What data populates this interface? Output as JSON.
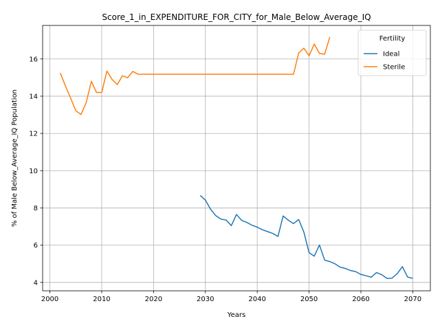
{
  "chart_data": {
    "type": "line",
    "title": "Score_1_in_EXPENDITURE_FOR_CITY_for_Male_Below_Average_IQ",
    "xlabel": "Years",
    "ylabel": "% of Male Below_Average_IQ Population",
    "xlim": [
      1998.6,
      2073.4
    ],
    "ylim": [
      3.55,
      17.8
    ],
    "xticks": [
      2000,
      2010,
      2020,
      2030,
      2040,
      2050,
      2060,
      2070
    ],
    "yticks": [
      4,
      6,
      8,
      10,
      12,
      14,
      16
    ],
    "grid": true,
    "legend": {
      "title": "Fertility",
      "position": "top-right"
    },
    "series": [
      {
        "name": "Ideal",
        "color": "#1f77b4",
        "x": [
          2029,
          2030,
          2031,
          2032,
          2033,
          2034,
          2035,
          2036,
          2037,
          2038,
          2039,
          2040,
          2041,
          2042,
          2043,
          2044,
          2045,
          2046,
          2047,
          2048,
          2049,
          2050,
          2051,
          2052,
          2053,
          2054,
          2055,
          2056,
          2057,
          2058,
          2059,
          2060,
          2061,
          2062,
          2063,
          2064,
          2065,
          2066,
          2067,
          2068,
          2069,
          2070
        ],
        "values": [
          8.67,
          8.42,
          7.93,
          7.59,
          7.4,
          7.35,
          7.05,
          7.65,
          7.33,
          7.22,
          7.07,
          6.97,
          6.83,
          6.73,
          6.63,
          6.47,
          7.57,
          7.34,
          7.16,
          7.38,
          6.7,
          5.6,
          5.41,
          6.01,
          5.2,
          5.12,
          5.0,
          4.82,
          4.75,
          4.64,
          4.58,
          4.43,
          4.36,
          4.28,
          4.53,
          4.42,
          4.22,
          4.23,
          4.47,
          4.85,
          4.29,
          4.22
        ]
      },
      {
        "name": "Sterile",
        "color": "#ff7f0e",
        "x": [
          2002,
          2003,
          2004,
          2005,
          2006,
          2007,
          2008,
          2009,
          2010,
          2011,
          2012,
          2013,
          2014,
          2015,
          2016,
          2017,
          2018,
          2019,
          2020,
          2021,
          2022,
          2023,
          2024,
          2025,
          2026,
          2027,
          2028,
          2029,
          2030,
          2031,
          2032,
          2033,
          2034,
          2035,
          2036,
          2037,
          2038,
          2039,
          2040,
          2041,
          2042,
          2043,
          2044,
          2045,
          2046,
          2047,
          2048,
          2049,
          2050,
          2051,
          2052,
          2053,
          2054
        ],
        "values": [
          15.25,
          14.55,
          13.9,
          13.22,
          13.02,
          13.65,
          14.8,
          14.2,
          14.2,
          15.35,
          14.9,
          14.62,
          15.1,
          14.99,
          15.33,
          15.18,
          15.18,
          15.18,
          15.18,
          15.18,
          15.18,
          15.18,
          15.18,
          15.18,
          15.18,
          15.18,
          15.18,
          15.18,
          15.18,
          15.18,
          15.18,
          15.18,
          15.18,
          15.18,
          15.18,
          15.18,
          15.18,
          15.18,
          15.18,
          15.18,
          15.18,
          15.18,
          15.18,
          15.18,
          15.18,
          15.18,
          16.32,
          16.58,
          16.17,
          16.8,
          16.3,
          16.25,
          17.18
        ]
      }
    ]
  }
}
